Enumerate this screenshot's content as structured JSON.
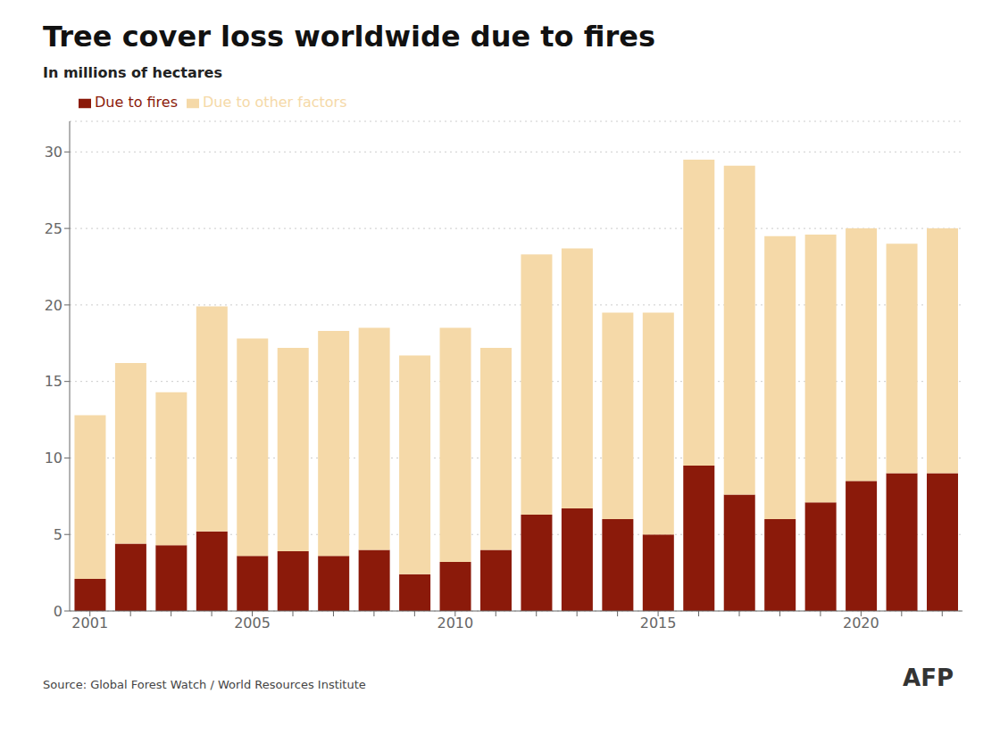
{
  "chart_data": {
    "type": "bar",
    "title": "Tree cover loss worldwide due to fires",
    "subtitle": "In millions of hectares",
    "annotations": [
      "Source: Global Forest Watch / World Resources Institute",
      "AFP"
    ],
    "categories": [
      2001,
      null,
      null,
      null,
      2005,
      null,
      null,
      null,
      null,
      2010,
      null,
      null,
      null,
      null,
      2015,
      null,
      null,
      null,
      null,
      2020,
      null,
      null
    ],
    "series": [
      {
        "name": "Due to fires",
        "color": "#8B1A0A",
        "values": [
          2.1,
          4.4,
          4.3,
          5.2,
          3.6,
          3.9,
          3.6,
          4.0,
          2.4,
          3.2,
          4.0,
          6.3,
          6.7,
          6.0,
          5.0,
          9.5,
          7.6,
          6.0,
          7.1,
          8.5,
          9.0,
          9.0
        ]
      },
      {
        "name": "Due to other factors",
        "color": "#F5D9A8",
        "values": [
          10.7,
          11.8,
          10.0,
          14.7,
          14.2,
          13.3,
          14.7,
          14.5,
          14.3,
          15.3,
          13.2,
          17.0,
          17.0,
          13.5,
          14.5,
          20.0,
          21.5,
          18.5,
          17.5,
          16.5,
          15.0,
          16.0
        ]
      }
    ],
    "stacked": true,
    "ylim": [
      0,
      32
    ],
    "yticks": [
      0,
      5,
      10,
      15,
      20,
      25,
      30
    ],
    "grid": true,
    "legend": "top"
  }
}
